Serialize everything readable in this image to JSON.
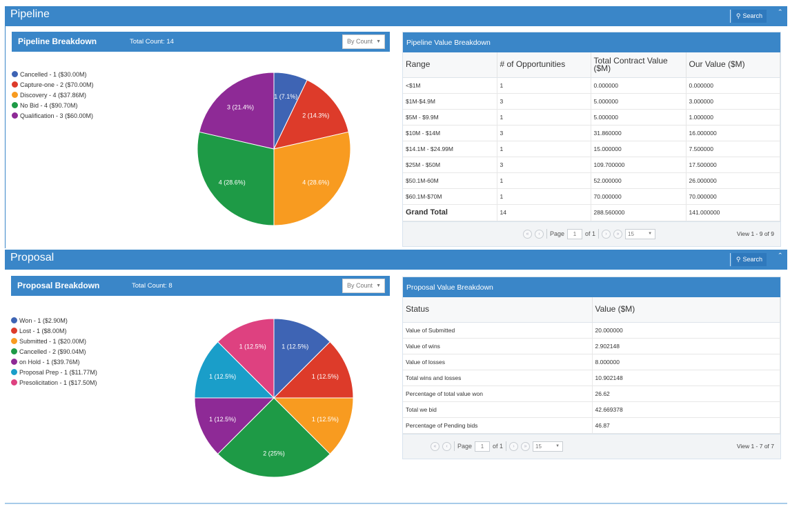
{
  "pipeline": {
    "section_title": "Pipeline",
    "search_label": "Search",
    "breakdown": {
      "title": "Pipeline Breakdown",
      "total_count": "Total Count: 14",
      "select_value": "By Count",
      "legend": [
        {
          "label": "Cancelled - 1 ($30.00M)",
          "color": "#3e64b4"
        },
        {
          "label": "Capture-one - 2 ($70.00M)",
          "color": "#dd3b2a"
        },
        {
          "label": "Discovery - 4 ($37.86M)",
          "color": "#f89b20"
        },
        {
          "label": "No Bid - 4 ($90.70M)",
          "color": "#1e9a46"
        },
        {
          "label": "Qualification - 3 ($60.00M)",
          "color": "#8e2a96"
        }
      ],
      "slices": [
        {
          "value": 1,
          "label": "1 (7.1%)",
          "color": "#3e64b4"
        },
        {
          "value": 2,
          "label": "2 (14.3%)",
          "color": "#dd3b2a"
        },
        {
          "value": 4,
          "label": "4 (28.6%)",
          "color": "#f89b20"
        },
        {
          "value": 4,
          "label": "4 (28.6%)",
          "color": "#1e9a46"
        },
        {
          "value": 3,
          "label": "3 (21.4%)",
          "color": "#8e2a96"
        }
      ]
    },
    "value_breakdown": {
      "title": "Pipeline Value Breakdown",
      "columns": [
        "Range",
        "# of Opportunities",
        "Total Contract Value ($M)",
        "Our Value ($M)"
      ],
      "rows": [
        [
          "<$1M",
          "1",
          "0.000000",
          "0.000000"
        ],
        [
          "$1M-$4.9M",
          "3",
          "5.000000",
          "3.000000"
        ],
        [
          "$5M - $9.9M",
          "1",
          "5.000000",
          "1.000000"
        ],
        [
          "$10M - $14M",
          "3",
          "31.860000",
          "16.000000"
        ],
        [
          "$14.1M - $24.99M",
          "1",
          "15.000000",
          "7.500000"
        ],
        [
          "$25M - $50M",
          "3",
          "109.700000",
          "17.500000"
        ],
        [
          "$50.1M-60M",
          "1",
          "52.000000",
          "26.000000"
        ],
        [
          "$60.1M-$70M",
          "1",
          "70.000000",
          "70.000000"
        ]
      ],
      "total_row": [
        "Grand Total",
        "14",
        "288.560000",
        "141.000000"
      ],
      "pager": {
        "page_label": "Page",
        "page": "1",
        "of_label": "of 1",
        "page_size": "15",
        "view": "View 1 - 9 of 9"
      }
    }
  },
  "proposal": {
    "section_title": "Proposal",
    "search_label": "Search",
    "breakdown": {
      "title": "Proposal Breakdown",
      "total_count": "Total Count: 8",
      "select_value": "By Count",
      "legend": [
        {
          "label": "Won - 1 ($2.90M)",
          "color": "#3e64b4"
        },
        {
          "label": "Lost - 1 ($8.00M)",
          "color": "#dd3b2a"
        },
        {
          "label": "Submitted - 1 ($20.00M)",
          "color": "#f89b20"
        },
        {
          "label": "Cancelled - 2 ($90.04M)",
          "color": "#1e9a46"
        },
        {
          "label": "on Hold - 1 ($39.76M)",
          "color": "#8e2a96"
        },
        {
          "label": "Proposal Prep - 1 ($11.77M)",
          "color": "#1a9ec9"
        },
        {
          "label": "Presolicitation - 1 ($17.50M)",
          "color": "#de4180"
        }
      ],
      "slices": [
        {
          "value": 1,
          "label": "1 (12.5%)",
          "color": "#3e64b4"
        },
        {
          "value": 1,
          "label": "1 (12.5%)",
          "color": "#dd3b2a"
        },
        {
          "value": 1,
          "label": "1 (12.5%)",
          "color": "#f89b20"
        },
        {
          "value": 2,
          "label": "2 (25%)",
          "color": "#1e9a46"
        },
        {
          "value": 1,
          "label": "1 (12.5%)",
          "color": "#8e2a96"
        },
        {
          "value": 1,
          "label": "1 (12.5%)",
          "color": "#1a9ec9"
        },
        {
          "value": 1,
          "label": "1 (12.5%)",
          "color": "#de4180"
        }
      ]
    },
    "value_breakdown": {
      "title": "Proposal Value Breakdown",
      "columns": [
        "Status",
        "Value ($M)"
      ],
      "rows": [
        [
          "Value of Submitted",
          "20.000000"
        ],
        [
          "Value of wins",
          "2.902148"
        ],
        [
          "Value of losses",
          "8.000000"
        ],
        [
          "Total wins and losses",
          "10.902148"
        ],
        [
          "Percentage of total value won",
          "26.62"
        ],
        [
          "Total we bid",
          "42.669378"
        ],
        [
          "Percentage of Pending bids",
          "46.87"
        ]
      ],
      "pager": {
        "page_label": "Page",
        "page": "1",
        "of_label": "of 1",
        "page_size": "15",
        "view": "View 1 - 7 of 7"
      }
    }
  }
}
